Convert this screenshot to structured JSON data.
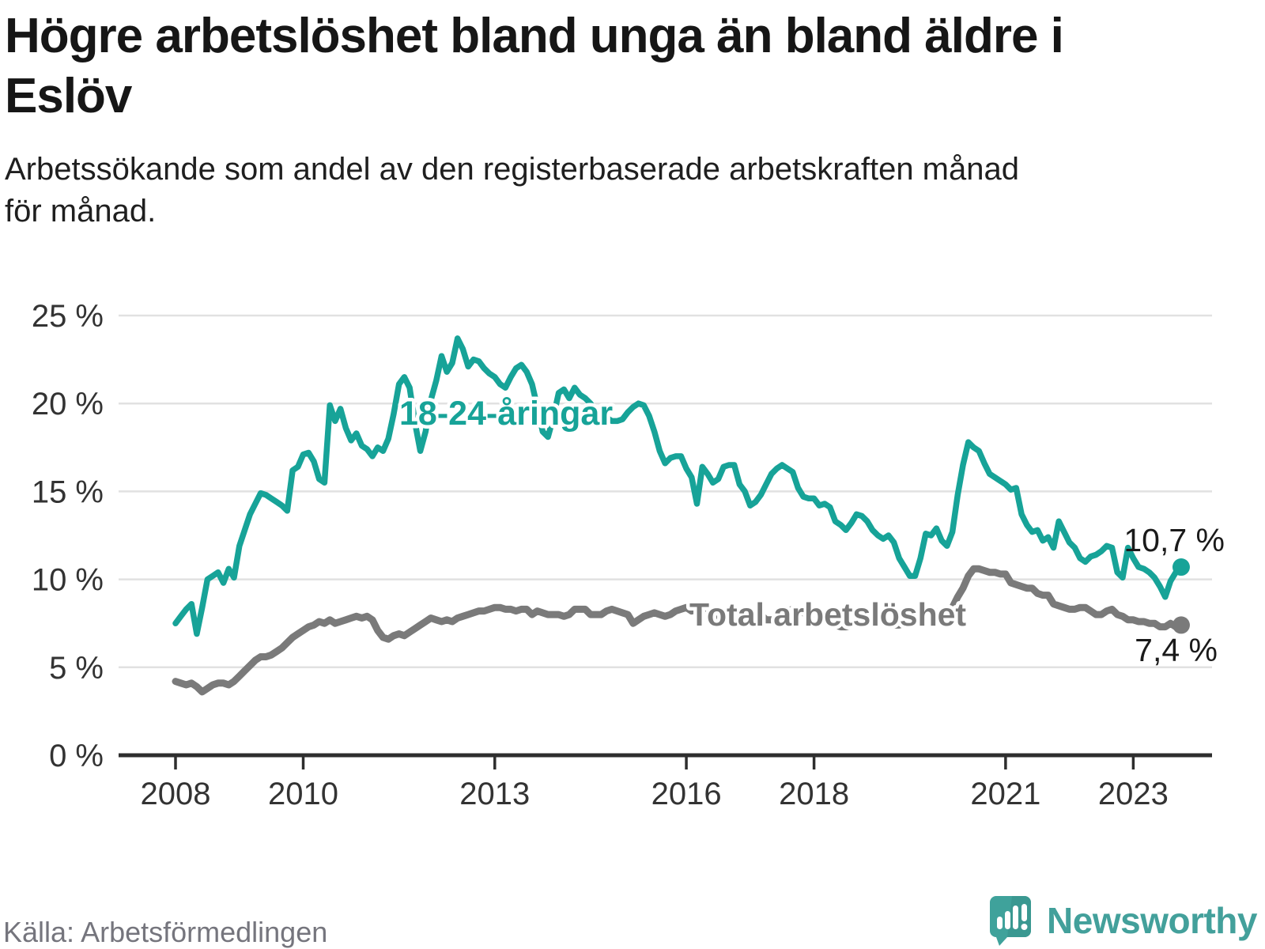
{
  "title_lines": [
    "Högre arbetslöshet bland unga än bland äldre i",
    "Eslöv"
  ],
  "subtitle_lines": [
    "Arbetssökande som andel av den registerbaserade arbetskraften månad",
    "för månad."
  ],
  "source": "Källa: Arbetsförmedlingen",
  "branding": {
    "name": "Newsworthy",
    "logo_icon": "speech-bubble-bar-chart",
    "color": "#43a09b"
  },
  "colors": {
    "young_series": "#17a398",
    "total_series": "#7a7a7a",
    "gridline": "#e1e1e1",
    "axis": "#2e2e2e",
    "tick_label": "#333333",
    "annotation": "#1a1a1a",
    "background": "#ffffff"
  },
  "chart_data": {
    "type": "line",
    "title": "",
    "xlabel": "",
    "ylabel": "",
    "frequency": "monthly",
    "start": {
      "year": 2008,
      "month": 1
    },
    "end": {
      "year": 2023,
      "month": 10
    },
    "ylim": [
      0,
      25
    ],
    "grid": true,
    "y_ticks": [
      {
        "value": 25,
        "label": "25 %"
      },
      {
        "value": 20,
        "label": "20 %"
      },
      {
        "value": 15,
        "label": "15 %"
      },
      {
        "value": 10,
        "label": "10 %"
      },
      {
        "value": 5,
        "label": "5 %"
      },
      {
        "value": 0,
        "label": "0 %"
      }
    ],
    "x_ticks": [
      {
        "year": 2008,
        "label": "2008"
      },
      {
        "year": 2010,
        "label": "2010"
      },
      {
        "year": 2013,
        "label": "2013"
      },
      {
        "year": 2016,
        "label": "2016"
      },
      {
        "year": 2018,
        "label": "2018"
      },
      {
        "year": 2021,
        "label": "2021"
      },
      {
        "year": 2023,
        "label": "2023"
      }
    ],
    "series": [
      {
        "name": "18-24-åringar",
        "color": "#17a398",
        "end_label": "10,7 %",
        "end_value": 10.7,
        "values": [
          7.5,
          7.9,
          8.3,
          8.6,
          6.9,
          8.4,
          10.0,
          10.2,
          10.4,
          9.8,
          10.6,
          10.1,
          11.9,
          12.8,
          13.7,
          14.3,
          14.9,
          14.8,
          14.6,
          14.4,
          14.2,
          13.9,
          16.2,
          16.4,
          17.1,
          17.2,
          16.7,
          15.7,
          15.5,
          19.9,
          19.0,
          19.7,
          18.6,
          17.9,
          18.3,
          17.6,
          17.4,
          17.0,
          17.5,
          17.3,
          18.0,
          19.4,
          21.1,
          21.5,
          20.9,
          18.9,
          17.3,
          18.4,
          20.2,
          21.3,
          22.7,
          21.8,
          22.3,
          23.7,
          23.1,
          22.1,
          22.5,
          22.4,
          22.0,
          21.7,
          21.5,
          21.1,
          20.9,
          21.5,
          22.0,
          22.2,
          21.8,
          21.1,
          19.8,
          18.4,
          18.1,
          19.2,
          20.6,
          20.8,
          20.3,
          20.9,
          20.5,
          20.3,
          20.0,
          19.5,
          19.7,
          19.2,
          19.0,
          19.0,
          19.1,
          19.5,
          19.8,
          20.0,
          19.9,
          19.3,
          18.4,
          17.3,
          16.6,
          16.9,
          17.0,
          17.0,
          16.3,
          15.8,
          14.3,
          16.4,
          16.0,
          15.5,
          15.7,
          16.4,
          16.5,
          16.5,
          15.4,
          15.0,
          14.2,
          14.4,
          14.8,
          15.4,
          16.0,
          16.3,
          16.5,
          16.3,
          16.1,
          15.2,
          14.7,
          14.6,
          14.6,
          14.2,
          14.3,
          14.1,
          13.3,
          13.1,
          12.8,
          13.2,
          13.7,
          13.6,
          13.3,
          12.8,
          12.5,
          12.3,
          12.5,
          12.1,
          11.2,
          10.7,
          10.2,
          10.2,
          11.2,
          12.6,
          12.5,
          12.9,
          12.2,
          11.9,
          12.7,
          14.8,
          16.5,
          17.8,
          17.5,
          17.3,
          16.6,
          16.0,
          15.8,
          15.6,
          15.4,
          15.1,
          15.2,
          13.7,
          13.1,
          12.7,
          12.8,
          12.2,
          12.4,
          11.8,
          13.3,
          12.7,
          12.1,
          11.8,
          11.2,
          11.0,
          11.3,
          11.4,
          11.6,
          11.9,
          11.8,
          10.4,
          10.1,
          11.8,
          11.2,
          10.7,
          10.6,
          10.4,
          10.1,
          9.6,
          9.0,
          9.9,
          10.4,
          10.7
        ]
      },
      {
        "name": "Total arbetslöshet",
        "color": "#7a7a7a",
        "end_label": "7,4 %",
        "end_value": 7.4,
        "values": [
          4.2,
          4.1,
          4.0,
          4.1,
          3.9,
          3.6,
          3.8,
          4.0,
          4.1,
          4.1,
          4.0,
          4.2,
          4.5,
          4.8,
          5.1,
          5.4,
          5.6,
          5.6,
          5.7,
          5.9,
          6.1,
          6.4,
          6.7,
          6.9,
          7.1,
          7.3,
          7.4,
          7.6,
          7.5,
          7.7,
          7.5,
          7.6,
          7.7,
          7.8,
          7.9,
          7.8,
          7.9,
          7.7,
          7.1,
          6.7,
          6.6,
          6.8,
          6.9,
          6.8,
          7.0,
          7.2,
          7.4,
          7.6,
          7.8,
          7.7,
          7.6,
          7.7,
          7.6,
          7.8,
          7.9,
          8.0,
          8.1,
          8.2,
          8.2,
          8.3,
          8.4,
          8.4,
          8.3,
          8.3,
          8.2,
          8.3,
          8.3,
          8.0,
          8.2,
          8.1,
          8.0,
          8.0,
          8.0,
          7.9,
          8.0,
          8.3,
          8.3,
          8.3,
          8.0,
          8.0,
          8.0,
          8.2,
          8.3,
          8.2,
          8.1,
          8.0,
          7.5,
          7.7,
          7.9,
          8.0,
          8.1,
          8.0,
          7.9,
          8.0,
          8.2,
          8.3,
          8.4,
          8.2,
          8.3,
          8.3,
          7.9,
          7.8,
          7.7,
          8.0,
          8.0,
          8.0,
          8.2,
          8.3,
          8.2,
          8.1,
          8.0,
          7.7,
          7.7,
          7.7,
          8.0,
          8.2,
          8.3,
          8.2,
          8.1,
          8.0,
          7.8,
          7.7,
          7.6,
          7.5,
          7.4,
          7.3,
          7.3,
          7.4,
          7.5,
          7.5,
          7.6,
          7.7,
          7.7,
          7.6,
          7.5,
          7.4,
          7.4,
          7.5,
          7.6,
          7.7,
          7.8,
          7.9,
          8.0,
          8.1,
          8.2,
          8.1,
          8.4,
          9.0,
          9.5,
          10.2,
          10.6,
          10.6,
          10.5,
          10.4,
          10.4,
          10.3,
          10.3,
          9.8,
          9.7,
          9.6,
          9.5,
          9.5,
          9.2,
          9.1,
          9.1,
          8.6,
          8.5,
          8.4,
          8.3,
          8.3,
          8.4,
          8.4,
          8.2,
          8.0,
          8.0,
          8.2,
          8.3,
          8.0,
          7.9,
          7.7,
          7.7,
          7.6,
          7.6,
          7.5,
          7.5,
          7.3,
          7.3,
          7.5,
          7.3,
          7.4
        ]
      }
    ]
  }
}
